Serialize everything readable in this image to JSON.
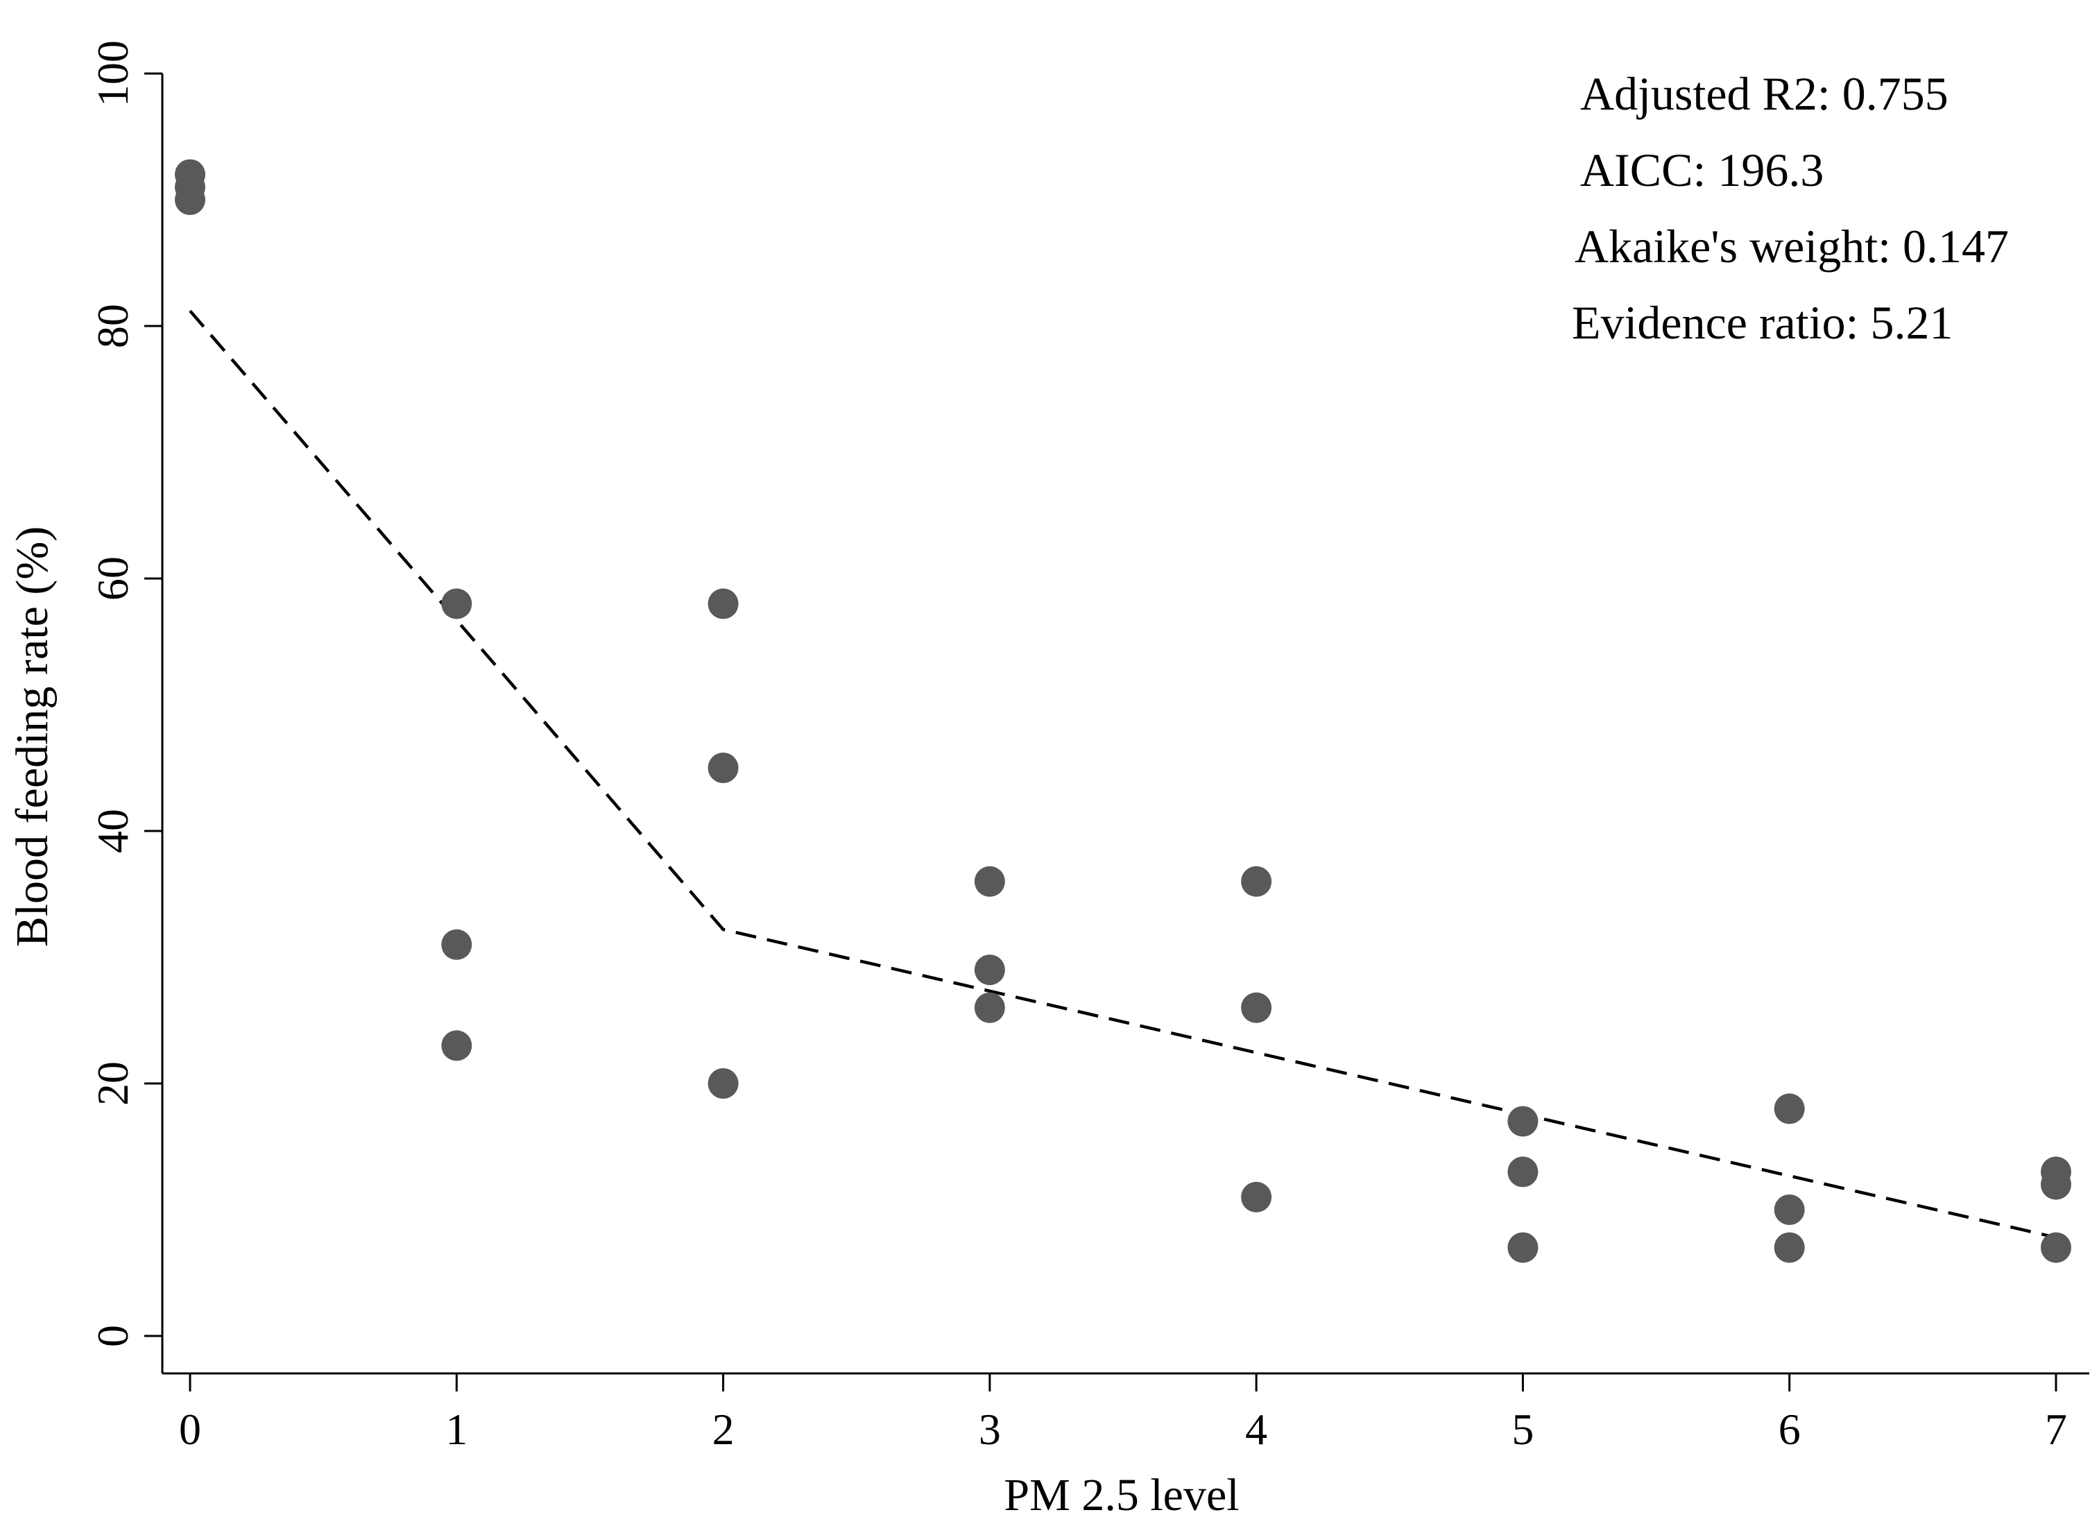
{
  "chart_data": {
    "type": "scatter",
    "title": "",
    "xlabel": "PM 2.5 level",
    "ylabel": "Blood feeding rate (%)",
    "xlim": [
      0,
      7
    ],
    "ylim": [
      0,
      100
    ],
    "x_ticks": [
      0,
      1,
      2,
      3,
      4,
      5,
      6,
      7
    ],
    "y_ticks": [
      0,
      20,
      40,
      60,
      80,
      100
    ],
    "grid": false,
    "legend": "none",
    "series": [
      {
        "name": "Observed",
        "type": "scatter",
        "points": [
          {
            "x": 0,
            "y": 90
          },
          {
            "x": 0,
            "y": 91
          },
          {
            "x": 0,
            "y": 92
          },
          {
            "x": 1,
            "y": 58
          },
          {
            "x": 1,
            "y": 31
          },
          {
            "x": 1,
            "y": 23
          },
          {
            "x": 2,
            "y": 58
          },
          {
            "x": 2,
            "y": 45
          },
          {
            "x": 2,
            "y": 20
          },
          {
            "x": 3,
            "y": 36
          },
          {
            "x": 3,
            "y": 29
          },
          {
            "x": 3,
            "y": 26
          },
          {
            "x": 4,
            "y": 36
          },
          {
            "x": 4,
            "y": 26
          },
          {
            "x": 4,
            "y": 11
          },
          {
            "x": 5,
            "y": 17
          },
          {
            "x": 5,
            "y": 13
          },
          {
            "x": 5,
            "y": 7
          },
          {
            "x": 6,
            "y": 18
          },
          {
            "x": 6,
            "y": 10
          },
          {
            "x": 6,
            "y": 7
          },
          {
            "x": 7,
            "y": 13
          },
          {
            "x": 7,
            "y": 12
          },
          {
            "x": 7,
            "y": 7
          }
        ]
      },
      {
        "name": "Fitted segmented regression",
        "type": "line",
        "style": "dashed",
        "points": [
          {
            "x": 0,
            "y": 81.2
          },
          {
            "x": 2,
            "y": 32.2
          },
          {
            "x": 7,
            "y": 7.8
          }
        ]
      }
    ],
    "annotations": [
      "Adjusted R2: 0.755",
      "AICC: 196.3",
      "Akaike's weight: 0.147",
      "Evidence ratio: 5.21"
    ]
  },
  "colors": {
    "marker": "#595959",
    "line": "#000000",
    "axis": "#000000"
  }
}
